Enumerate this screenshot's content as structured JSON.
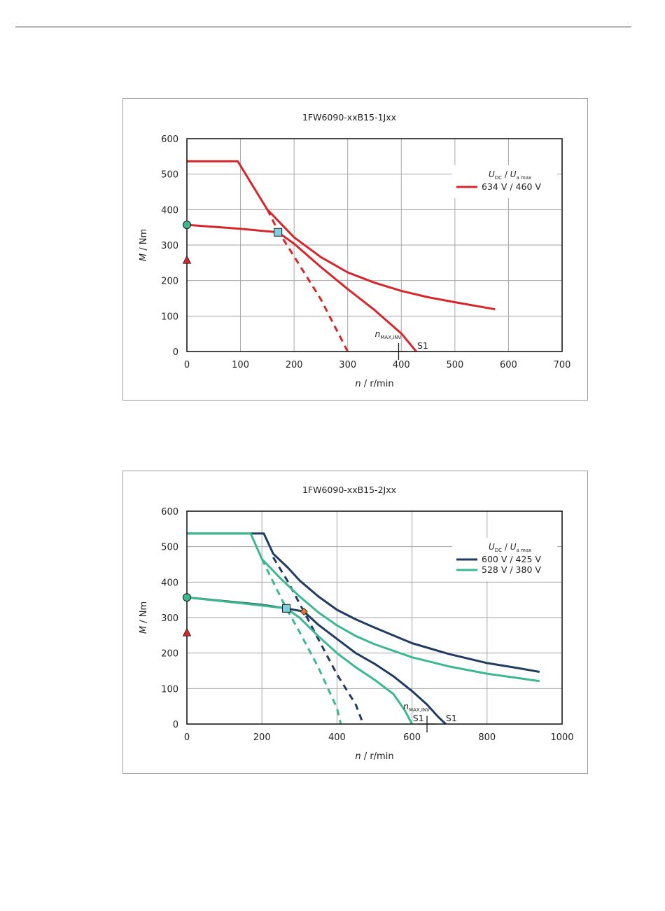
{
  "chart_data": [
    {
      "type": "line",
      "title": "1FW6090-xxB15-1Jxx",
      "xlabel_var": "n",
      "xlabel_unit": " / r/min",
      "ylabel_var": "M",
      "ylabel_unit": " / Nm",
      "xlim": [
        0,
        700
      ],
      "ylim": [
        0,
        600
      ],
      "xticks": [
        0,
        100,
        200,
        300,
        400,
        500,
        600,
        700
      ],
      "yticks": [
        0,
        100,
        200,
        300,
        400,
        500,
        600
      ],
      "grid": true,
      "legend_position": "top-right",
      "legend_header_u": "U",
      "legend_header_dc": "DC",
      "legend_header_sep": " / ",
      "legend_header_ua": "U",
      "legend_header_amax": "a max",
      "series": [
        {
          "name": "634 V / 460 V",
          "color": "#d7262b",
          "peak": [
            [
              0,
              536
            ],
            [
              95,
              536
            ],
            [
              150,
              400
            ],
            [
              200,
              322
            ],
            [
              250,
              266
            ],
            [
              300,
              223
            ],
            [
              350,
              194
            ],
            [
              400,
              171
            ],
            [
              450,
              153
            ],
            [
              500,
              139
            ],
            [
              575,
              119
            ]
          ],
          "s1": [
            [
              0,
              357
            ],
            [
              100,
              346
            ],
            [
              170,
              336
            ],
            [
              200,
              304
            ],
            [
              250,
              238
            ],
            [
              300,
              176
            ],
            [
              350,
              117
            ],
            [
              400,
              51
            ],
            [
              428,
              0
            ]
          ],
          "dashed": [
            [
              150,
              400
            ],
            [
              170,
              340
            ],
            [
              200,
              268
            ],
            [
              250,
              147
            ],
            [
              300,
              0
            ]
          ]
        }
      ],
      "markers": [
        {
          "type": "circle",
          "x": 0,
          "y": 357,
          "color": "#3cb88f"
        },
        {
          "type": "triangle",
          "x": 0,
          "y": 258,
          "color": "#d7262b"
        },
        {
          "type": "square",
          "x": 170,
          "y": 336,
          "color": "#7fcfdf"
        }
      ],
      "annotations": {
        "nmax_var": "n",
        "nmax_sub": "MAX,INV",
        "nmax_x": 395,
        "s1_labels": [
          {
            "text": "S1",
            "x": 440
          }
        ]
      }
    },
    {
      "type": "line",
      "title": "1FW6090-xxB15-2Jxx",
      "xlabel_var": "n",
      "xlabel_unit": " / r/min",
      "ylabel_var": "M",
      "ylabel_unit": " / Nm",
      "xlim": [
        0,
        1000
      ],
      "ylim": [
        0,
        600
      ],
      "xticks": [
        0,
        200,
        400,
        600,
        800,
        1000
      ],
      "yticks": [
        0,
        100,
        200,
        300,
        400,
        500,
        600
      ],
      "grid": true,
      "legend_position": "top-right",
      "legend_header_u": "U",
      "legend_header_dc": "DC",
      "legend_header_sep": " / ",
      "legend_header_ua": "U",
      "legend_header_amax": "a max",
      "series": [
        {
          "name": "600 V / 425 V",
          "color": "#1f3b63",
          "peak": [
            [
              0,
              537
            ],
            [
              205,
              537
            ],
            [
              230,
              480
            ],
            [
              270,
              440
            ],
            [
              300,
              405
            ],
            [
              350,
              360
            ],
            [
              400,
              322
            ],
            [
              450,
              295
            ],
            [
              500,
              272
            ],
            [
              600,
              228
            ],
            [
              700,
              197
            ],
            [
              800,
              172
            ],
            [
              880,
              158
            ],
            [
              940,
              147
            ]
          ],
          "s1": [
            [
              0,
              357
            ],
            [
              200,
              336
            ],
            [
              265,
              326
            ],
            [
              312,
              317
            ],
            [
              350,
              280
            ],
            [
              400,
              240
            ],
            [
              450,
              200
            ],
            [
              500,
              170
            ],
            [
              550,
              135
            ],
            [
              600,
              93
            ],
            [
              640,
              55
            ],
            [
              670,
              20
            ],
            [
              690,
              0
            ]
          ],
          "dashed": [
            [
              230,
              470
            ],
            [
              270,
              400
            ],
            [
              300,
              340
            ],
            [
              312,
              317
            ],
            [
              350,
              240
            ],
            [
              400,
              140
            ],
            [
              450,
              55
            ],
            [
              470,
              0
            ]
          ]
        },
        {
          "name": "528 V / 380 V",
          "color": "#3cb88f",
          "peak": [
            [
              0,
              537
            ],
            [
              170,
              537
            ],
            [
              200,
              465
            ],
            [
              250,
              410
            ],
            [
              300,
              360
            ],
            [
              350,
              315
            ],
            [
              400,
              278
            ],
            [
              450,
              248
            ],
            [
              500,
              225
            ],
            [
              600,
              188
            ],
            [
              700,
              162
            ],
            [
              800,
              142
            ],
            [
              880,
              130
            ],
            [
              940,
              121
            ]
          ],
          "s1": [
            [
              0,
              357
            ],
            [
              150,
              340
            ],
            [
              265,
              326
            ],
            [
              300,
              300
            ],
            [
              350,
              248
            ],
            [
              400,
              200
            ],
            [
              450,
              160
            ],
            [
              500,
              125
            ],
            [
              550,
              85
            ],
            [
              580,
              40
            ],
            [
              600,
              0
            ]
          ],
          "dashed": [
            [
              200,
              465
            ],
            [
              230,
              400
            ],
            [
              265,
              326
            ],
            [
              300,
              260
            ],
            [
              350,
              160
            ],
            [
              400,
              45
            ],
            [
              410,
              0
            ]
          ]
        }
      ],
      "markers": [
        {
          "type": "circle",
          "x": 0,
          "y": 357,
          "color": "#3cb88f"
        },
        {
          "type": "triangle",
          "x": 0,
          "y": 258,
          "color": "#d7262b"
        },
        {
          "type": "square",
          "x": 265,
          "y": 326,
          "color": "#7fcfdf"
        },
        {
          "type": "diamond",
          "x": 312,
          "y": 317,
          "color": "#e07a2e"
        }
      ],
      "annotations": {
        "nmax_var": "n",
        "nmax_sub": "MAX,INV",
        "nmax_x": 640,
        "s1_labels": [
          {
            "text": "S1",
            "x": 617
          },
          {
            "text": "S1",
            "x": 705
          }
        ]
      }
    }
  ]
}
